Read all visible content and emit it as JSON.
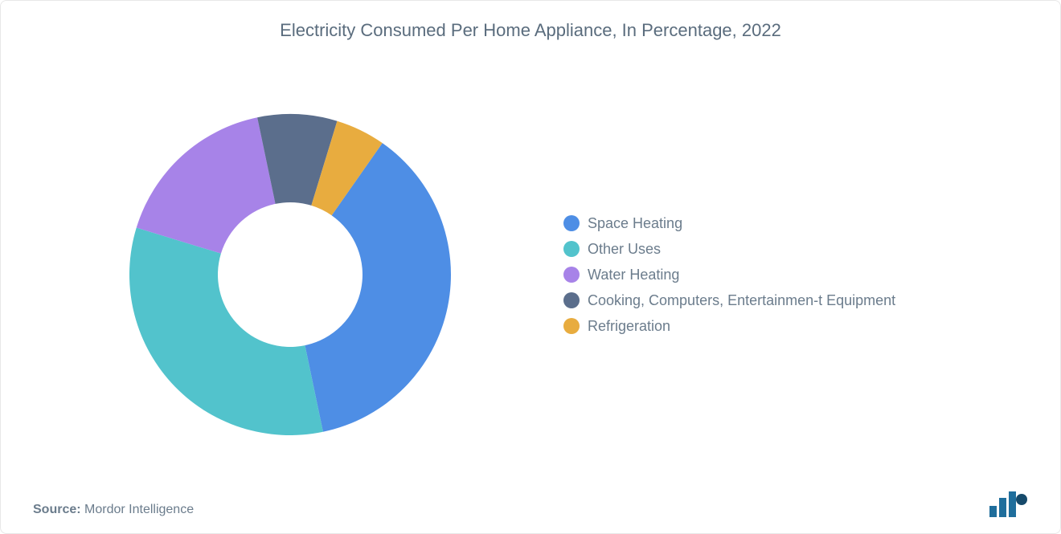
{
  "chart": {
    "type": "donut",
    "title": "Electricity Consumed Per Home Appliance, In Percentage, 2022",
    "title_fontsize": 22,
    "title_color": "#5a6c7d",
    "background_color": "#ffffff",
    "inner_radius_ratio": 0.45,
    "segments": [
      {
        "label": "Space Heating",
        "value": 37,
        "color": "#4e8ee5"
      },
      {
        "label": "Other Uses",
        "value": 33,
        "color": "#52c3cc"
      },
      {
        "label": "Water Heating",
        "value": 17,
        "color": "#a783e8"
      },
      {
        "label": "Cooking, Computers, Entertainmen-t Equipment",
        "value": 8,
        "color": "#5b6e8c"
      },
      {
        "label": "Refrigeration",
        "value": 5,
        "color": "#e8ac3f"
      }
    ],
    "legend": {
      "position": "right",
      "dot_size": 20,
      "font_size": 18,
      "text_color": "#6b7c8c"
    },
    "start_angle_deg": -55
  },
  "source": {
    "label": "Source:",
    "text": "Mordor Intelligence"
  },
  "logo": {
    "name": "mordor-intelligence-logo",
    "bar_color": "#1f6e9c",
    "circle_color": "#164a6b"
  }
}
